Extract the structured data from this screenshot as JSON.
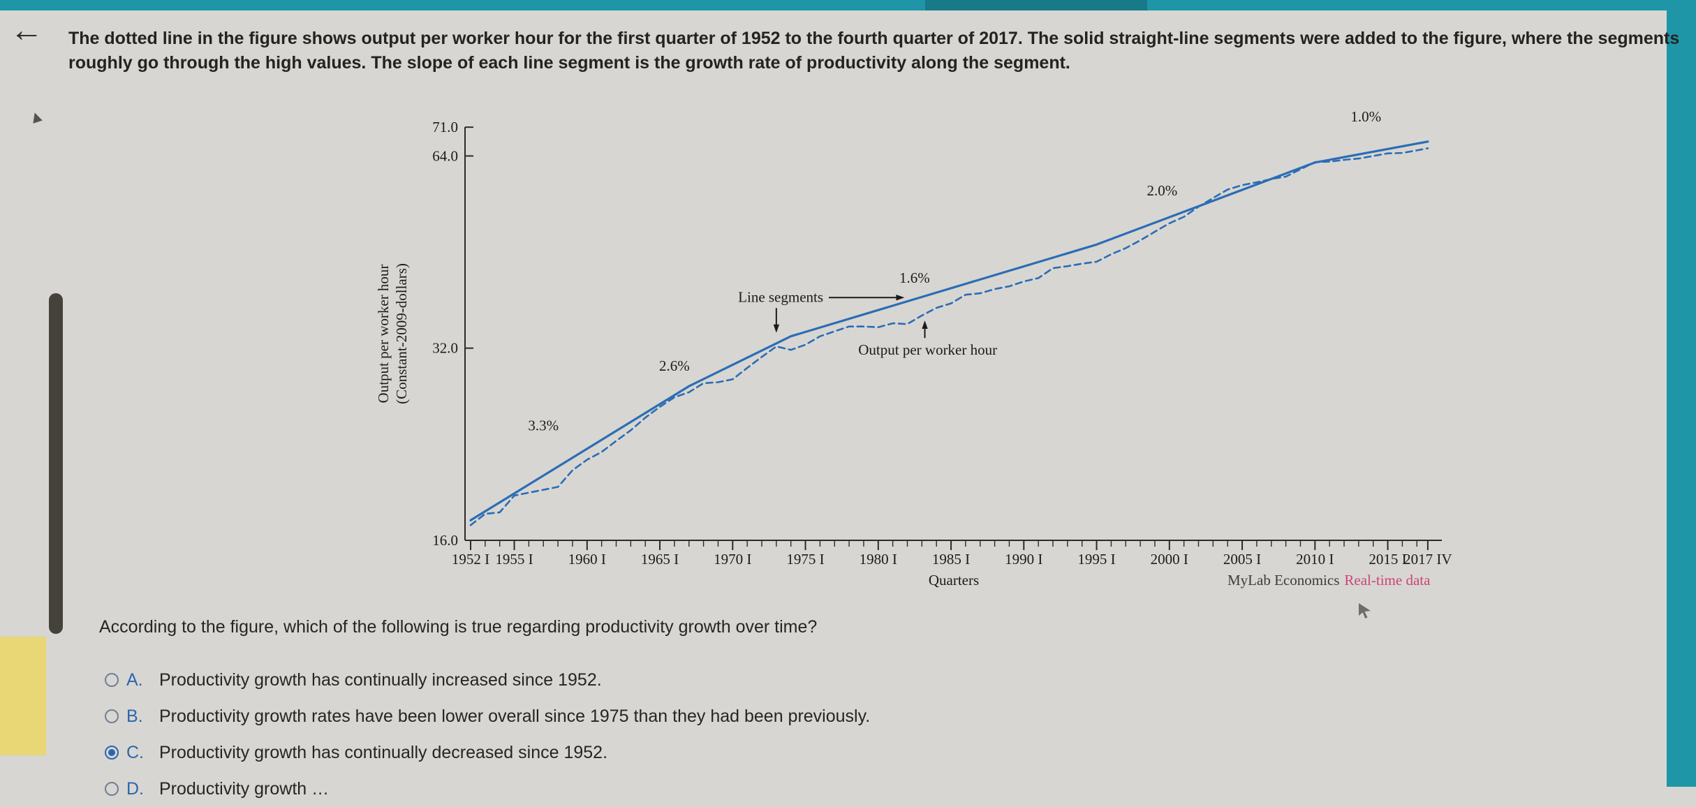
{
  "chrome": {
    "back_arrow": "←",
    "left_marker": "▲",
    "accent_color": "#1f96a7"
  },
  "question": {
    "intro_line1": "The dotted line in the figure shows output per worker hour for the first quarter of 1952 to the fourth quarter of 2017. The solid straight-line segments were added to the figure, where the segments",
    "intro_line2": "roughly go through the high values. The slope of each line segment is the growth rate of productivity along the segment.",
    "prompt": "According to the figure, which of the following is true regarding productivity growth over time?",
    "options": [
      {
        "letter": "A.",
        "text": "Productivity growth has continually increased since 1952.",
        "selected": false
      },
      {
        "letter": "B.",
        "text": "Productivity growth rates have been lower overall since 1975 than they had been previously.",
        "selected": false
      },
      {
        "letter": "C.",
        "text": "Productivity growth has continually decreased since 1952.",
        "selected": true
      },
      {
        "letter": "D.",
        "text": "Productivity growth …",
        "selected": false,
        "clipped": true
      }
    ]
  },
  "chart_data": {
    "type": "line",
    "title": "",
    "ylabel_line1": "Output per worker hour",
    "ylabel_line2": "(Constant-2009-dollars)",
    "xlabel": "Quarters",
    "y_scale": "log",
    "ylim": [
      16,
      71
    ],
    "line_color": "#2a6db5",
    "y_ticks": [
      {
        "label": "71.0",
        "value": 71
      },
      {
        "label": "64.0",
        "value": 64
      },
      {
        "label": "32.0",
        "value": 32
      },
      {
        "label": "16.0",
        "value": 16
      }
    ],
    "x_ticks": [
      {
        "label": "1952 I",
        "year": 1952
      },
      {
        "label": "1955 I",
        "year": 1955
      },
      {
        "label": "1960 I",
        "year": 1960
      },
      {
        "label": "1965 I",
        "year": 1965
      },
      {
        "label": "1970 I",
        "year": 1970
      },
      {
        "label": "1975 I",
        "year": 1975
      },
      {
        "label": "1980 I",
        "year": 1980
      },
      {
        "label": "1985 I",
        "year": 1985
      },
      {
        "label": "1990 I",
        "year": 1990
      },
      {
        "label": "1995 I",
        "year": 1995
      },
      {
        "label": "2000 I",
        "year": 2000
      },
      {
        "label": "2005 I",
        "year": 2005
      },
      {
        "label": "2010 I",
        "year": 2010
      },
      {
        "label": "2015 I",
        "year": 2015
      },
      {
        "label": "2017 IV",
        "year": 2017.75
      }
    ],
    "series": [
      {
        "name": "Output per worker hour",
        "style": "dotted",
        "points": [
          [
            1952,
            16.9
          ],
          [
            1953,
            17.6
          ],
          [
            1954,
            17.7
          ],
          [
            1955,
            18.8
          ],
          [
            1956,
            19.0
          ],
          [
            1957,
            19.2
          ],
          [
            1958,
            19.4
          ],
          [
            1959,
            20.6
          ],
          [
            1960,
            21.4
          ],
          [
            1961,
            22.0
          ],
          [
            1962,
            22.9
          ],
          [
            1963,
            23.8
          ],
          [
            1964,
            24.9
          ],
          [
            1965,
            25.9
          ],
          [
            1966,
            26.8
          ],
          [
            1967,
            27.3
          ],
          [
            1968,
            28.2
          ],
          [
            1969,
            28.3
          ],
          [
            1970,
            28.6
          ],
          [
            1971,
            29.8
          ],
          [
            1972,
            31.0
          ],
          [
            1973,
            32.2
          ],
          [
            1974,
            31.8
          ],
          [
            1975,
            32.4
          ],
          [
            1976,
            33.4
          ],
          [
            1977,
            34.0
          ],
          [
            1978,
            34.6
          ],
          [
            1979,
            34.6
          ],
          [
            1980,
            34.5
          ],
          [
            1981,
            35.0
          ],
          [
            1982,
            34.9
          ],
          [
            1983,
            36.0
          ],
          [
            1984,
            37.0
          ],
          [
            1985,
            37.6
          ],
          [
            1986,
            38.8
          ],
          [
            1987,
            39.0
          ],
          [
            1988,
            39.6
          ],
          [
            1989,
            40.0
          ],
          [
            1990,
            40.7
          ],
          [
            1991,
            41.2
          ],
          [
            1992,
            42.7
          ],
          [
            1993,
            43.0
          ],
          [
            1994,
            43.4
          ],
          [
            1995,
            43.7
          ],
          [
            1996,
            44.9
          ],
          [
            1997,
            45.9
          ],
          [
            1998,
            47.2
          ],
          [
            1999,
            48.7
          ],
          [
            2000,
            50.2
          ],
          [
            2001,
            51.4
          ],
          [
            2002,
            53.3
          ],
          [
            2003,
            55.0
          ],
          [
            2004,
            56.7
          ],
          [
            2005,
            57.6
          ],
          [
            2006,
            58.2
          ],
          [
            2007,
            58.9
          ],
          [
            2008,
            59.4
          ],
          [
            2009,
            61.0
          ],
          [
            2010,
            62.6
          ],
          [
            2011,
            62.7
          ],
          [
            2012,
            63.1
          ],
          [
            2013,
            63.4
          ],
          [
            2014,
            64.0
          ],
          [
            2015,
            64.6
          ],
          [
            2016,
            64.7
          ],
          [
            2017,
            65.3
          ],
          [
            2017.75,
            65.8
          ]
        ]
      },
      {
        "name": "Line segments",
        "style": "solid",
        "points": [
          [
            1952,
            17.2
          ],
          [
            1967,
            27.9
          ],
          [
            1974,
            33.4
          ],
          [
            1995,
            46.5
          ],
          [
            2010,
            62.5
          ],
          [
            2017.75,
            67.4
          ]
        ]
      }
    ],
    "growth_labels": [
      {
        "text": "3.3%",
        "year": 1957.0,
        "value": 23.8
      },
      {
        "text": "2.6%",
        "year": 1966.0,
        "value": 29.5
      },
      {
        "text": "1.6%",
        "year": 1982.5,
        "value": 40.5
      },
      {
        "text": "2.0%",
        "year": 1999.5,
        "value": 55.5
      },
      {
        "text": "1.0%",
        "year": 2013.5,
        "value": 72.5
      }
    ],
    "callouts": [
      {
        "text": "Line segments",
        "anchor_year": 1973.3,
        "anchor_value": 38.5,
        "arrows": [
          {
            "dir": "right",
            "tip_year": 1981.8,
            "tip_value": 38.5
          },
          {
            "dir": "down",
            "tip_year": 1973.0,
            "tip_value": 33.4
          }
        ]
      },
      {
        "text": "Output per worker hour",
        "anchor_year": 1983.4,
        "anchor_value": 31.8,
        "arrows": [
          {
            "dir": "up",
            "tip_year": 1983.2,
            "tip_value": 35.8
          }
        ]
      }
    ],
    "footer": {
      "brand": "MyLab Economics",
      "link": "Real-time data",
      "link_color": "#cd4479"
    }
  }
}
